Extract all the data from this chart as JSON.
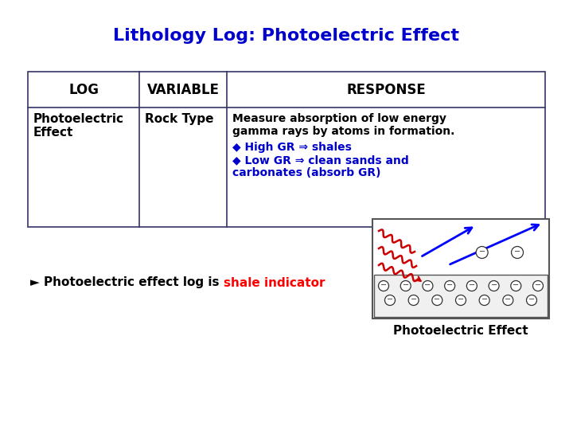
{
  "title": "Lithology Log: Photoelectric Effect",
  "title_color": "#0000CC",
  "title_fontsize": 16,
  "bg_color": "#FFFFFF",
  "header_col1": "LOG",
  "header_col2": "VARIABLE",
  "header_col3": "RESPONSE",
  "row_col1_line1": "Photoelectric",
  "row_col1_line2": "Effect",
  "row_col2": "Rock Type",
  "response_line1": "Measure absorption of low energy",
  "response_line2": "gamma rays by atoms in formation.",
  "response_bullet1": "◆ High GR ⇒ shales",
  "response_bullet2": "◆ Low GR ⇒ clean sands and",
  "response_bullet3": "carbonates (absorb GR)",
  "bullet_color": "#0000CC",
  "black_text": "#000000",
  "bottom_text_prefix": "► Photoelectric effect log is ",
  "bottom_text_highlight": "shale indicator",
  "bottom_highlight_color": "#FF0000",
  "caption": "Photoelectric Effect",
  "table_color": "#333366",
  "diag_electron_color": "#333333",
  "blue_arrow_color": "#0000FF",
  "red_wave_color": "#CC0000"
}
